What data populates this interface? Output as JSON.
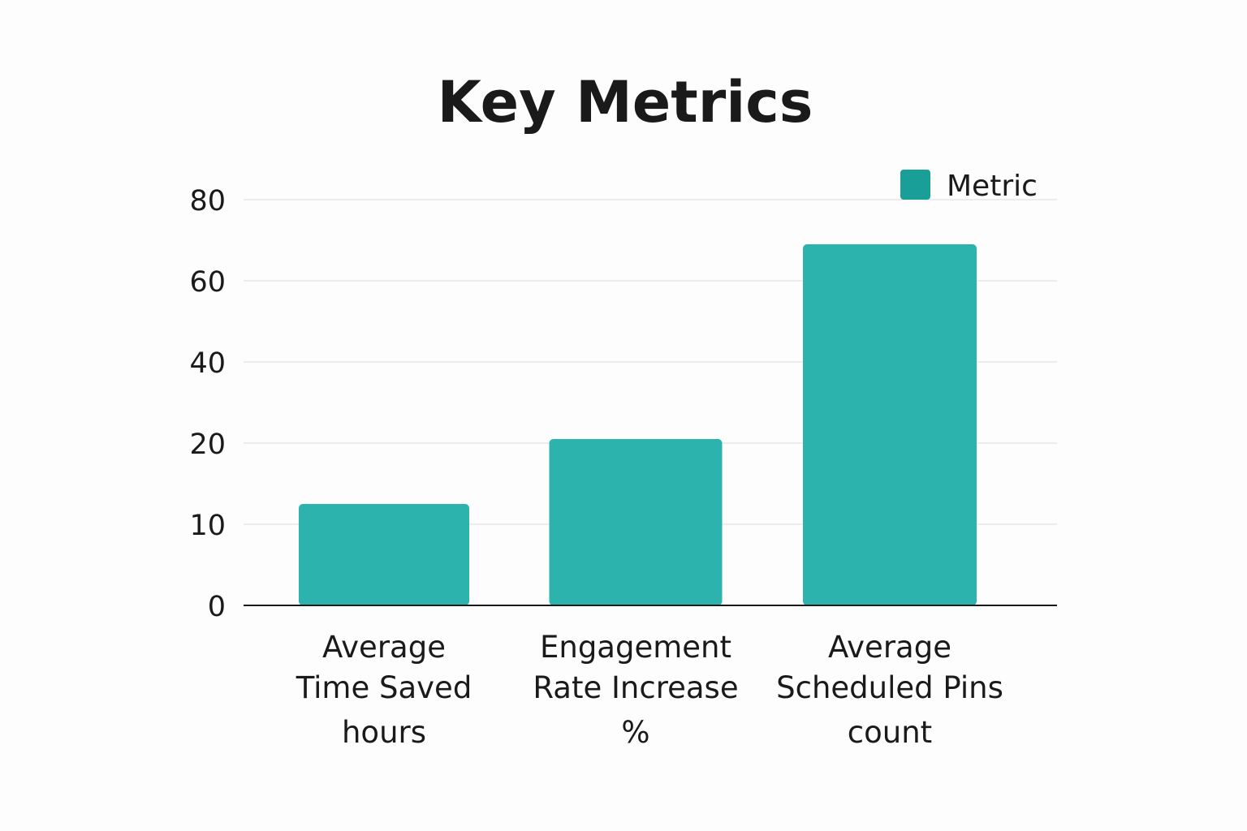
{
  "chart_data": {
    "type": "bar",
    "title": "Key Metrics",
    "xlabel": "",
    "ylabel": "",
    "categories": [
      [
        "Average",
        "Time Saved",
        "hours"
      ],
      [
        "Engagement",
        "Rate Increase",
        "%"
      ],
      [
        "Average",
        "Scheduled Pins",
        "count"
      ]
    ],
    "series": [
      {
        "name": "Metric",
        "values": [
          12.5,
          21,
          69
        ]
      }
    ],
    "y_ticks": [
      "0",
      "10",
      "20",
      "40",
      "60",
      "80"
    ],
    "ylim": [
      0,
      80
    ],
    "grid": true,
    "legend_position": "top-right",
    "colors": {
      "bar": "#2db3ad",
      "legend": "#1a9e98"
    }
  }
}
